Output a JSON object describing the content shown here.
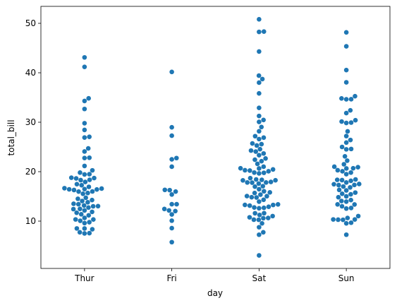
{
  "chart_data": {
    "type": "swarm",
    "x_label": "day",
    "y_label": "total_bill",
    "categories": [
      "Thur",
      "Fri",
      "Sat",
      "Sun"
    ],
    "color": "#1f77b4",
    "values": [
      [
        43.11,
        41.19,
        34.83,
        34.3,
        32.68,
        29.8,
        28.44,
        27.05,
        26.9,
        24.71,
        24.08,
        22.82,
        22.76,
        21.16,
        20.27,
        19.81,
        19.49,
        19.44,
        18.78,
        18.71,
        18.64,
        18.35,
        18.29,
        17.92,
        17.47,
        17.26,
        16.93,
        16.66,
        16.58,
        16.47,
        16.43,
        16.4,
        16.29,
        16.0,
        15.98,
        15.69,
        15.53,
        14.73,
        14.52,
        14.26,
        14.07,
        13.81,
        13.51,
        13.42,
        13.16,
        13.03,
        13.0,
        12.74,
        12.48,
        12.43,
        12.16,
        11.87,
        11.69,
        11.38,
        11.17,
        10.65,
        10.34,
        10.33,
        10.07,
        9.78,
        9.6,
        8.52,
        8.51,
        8.35,
        7.74,
        7.56,
        7.51
      ],
      [
        40.17,
        28.97,
        27.28,
        22.75,
        22.49,
        21.01,
        16.32,
        16.27,
        15.98,
        15.38,
        13.42,
        13.42,
        12.46,
        12.16,
        12.03,
        11.35,
        10.09,
        8.58,
        5.75
      ],
      [
        50.81,
        48.33,
        48.27,
        44.3,
        39.42,
        38.73,
        38.01,
        35.83,
        32.9,
        31.27,
        30.46,
        30.06,
        29.03,
        28.17,
        27.18,
        26.88,
        26.59,
        25.71,
        25.56,
        25.29,
        24.55,
        24.27,
        24.06,
        23.68,
        23.33,
        22.67,
        22.42,
        22.12,
        21.58,
        21.01,
        20.69,
        20.65,
        20.45,
        20.29,
        20.23,
        20.08,
        19.82,
        19.77,
        19.65,
        18.69,
        18.43,
        18.35,
        18.26,
        18.24,
        17.92,
        17.82,
        17.81,
        17.78,
        17.59,
        17.07,
        16.97,
        16.45,
        16.04,
        15.81,
        15.69,
        15.36,
        15.06,
        15.04,
        14.83,
        14.78,
        14.31,
        13.94,
        13.39,
        13.28,
        13.27,
        13.13,
        12.9,
        12.76,
        12.69,
        12.6,
        11.61,
        11.59,
        11.24,
        11.02,
        10.77,
        10.63,
        10.59,
        10.29,
        10.27,
        9.55,
        8.77,
        7.74,
        7.25,
        3.07
      ],
      [
        48.17,
        45.35,
        40.55,
        38.07,
        35.26,
        34.81,
        34.63,
        34.65,
        32.4,
        31.85,
        30.4,
        30.14,
        29.93,
        29.85,
        28.15,
        27.2,
        26.41,
        25.89,
        25.0,
        24.59,
        24.52,
        23.1,
        22.23,
        21.5,
        21.01,
        20.9,
        20.69,
        20.65,
        20.29,
        20.08,
        19.82,
        19.49,
        18.43,
        18.35,
        18.29,
        18.15,
        17.81,
        17.51,
        17.46,
        17.31,
        17.29,
        16.99,
        16.82,
        16.31,
        16.21,
        15.77,
        15.53,
        15.42,
        15.01,
        14.83,
        14.26,
        14.07,
        13.94,
        13.39,
        13.37,
        13.0,
        12.66,
        12.54,
        11.02,
        10.63,
        10.34,
        10.33,
        10.29,
        10.27,
        9.68,
        9.55,
        7.25
      ]
    ],
    "ylim": [
      0.43,
      53.43
    ],
    "yticks": [
      10,
      20,
      30,
      40,
      50
    ]
  }
}
